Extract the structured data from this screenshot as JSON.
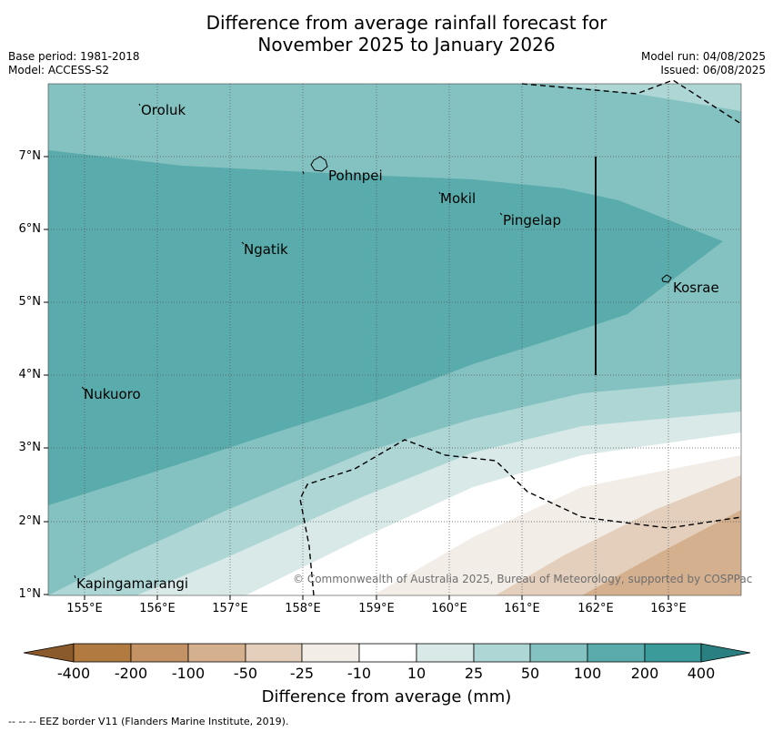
{
  "title_line1": "Difference from average rainfall forecast for",
  "title_line2": "November 2025 to January 2026",
  "meta_left": [
    "Base period: 1981-2018",
    "Model: ACCESS-S2"
  ],
  "meta_right": [
    "Model run: 04/08/2025",
    "Issued: 06/08/2025"
  ],
  "latitude_ticks": [
    "7°N",
    "6°N",
    "5°N",
    "4°N",
    "3°N",
    "2°N",
    "1°N"
  ],
  "longitude_ticks": [
    "155°E",
    "156°E",
    "157°E",
    "158°E",
    "159°E",
    "160°E",
    "161°E",
    "162°E",
    "163°E"
  ],
  "places": [
    "Oroluk",
    "Pohnpei",
    "Mokil",
    "Pingelap",
    "Ngatik",
    "Kosrae",
    "Nukuoro",
    "Kapingamarangi"
  ],
  "copyright": "© Commonwealth of Australia 2025, Bureau of Meteorology, supported by COSPPac",
  "colorbar": {
    "title": "Difference from average (mm)",
    "tick_labels": [
      "-400",
      "-200",
      "-100",
      "-50",
      "-25",
      "-10",
      "10",
      "25",
      "50",
      "100",
      "200",
      "400"
    ],
    "colors": [
      "#8b5a2b",
      "#b07a40",
      "#c39265",
      "#d4b08f",
      "#e3cfbc",
      "#f2ede6",
      "#ffffff",
      "#d8e9e8",
      "#add6d5",
      "#84c2c1",
      "#5aacac",
      "#3a9b9a",
      "#2a7f80"
    ]
  },
  "footnote": "--  --  -- EEZ border V11 (Flanders Marine Institute, 2019)."
}
